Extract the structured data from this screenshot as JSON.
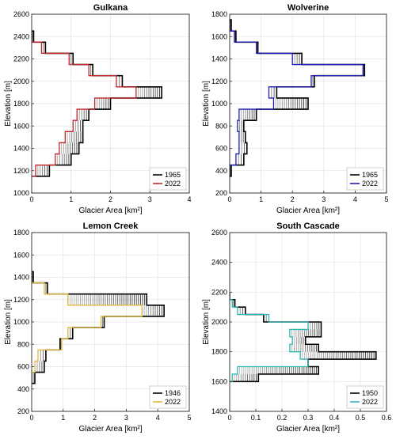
{
  "chart_data": [
    {
      "type": "step",
      "title": "Gulkana",
      "xlabel": "Glacier Area [km²]",
      "ylabel": "Elevation [m]",
      "xlim": [
        0,
        4
      ],
      "ylim": [
        1000,
        2600
      ],
      "xticks": [
        0,
        1,
        2,
        3,
        4
      ],
      "yticks": [
        1000,
        1200,
        1400,
        1600,
        1800,
        2000,
        2200,
        2400,
        2600
      ],
      "grid": true,
      "legend_position": "lower-right",
      "bands": [
        1150,
        1250,
        1350,
        1450,
        1550,
        1650,
        1750,
        1850,
        1950,
        2050,
        2150,
        2250,
        2350,
        2450
      ],
      "series": [
        {
          "name": "1965",
          "color": "#000000",
          "values": [
            0.45,
            1.0,
            1.2,
            1.3,
            1.3,
            1.45,
            2.0,
            3.3,
            2.3,
            1.55,
            1.05,
            0.35,
            0.05
          ]
        },
        {
          "name": "2022",
          "color": "#c0282a",
          "values": [
            0.1,
            0.6,
            0.7,
            0.85,
            1.05,
            1.15,
            1.6,
            2.65,
            2.15,
            1.45,
            0.95,
            0.25,
            0.0
          ]
        }
      ]
    },
    {
      "type": "step",
      "title": "Wolverine",
      "xlabel": "Glacier Area [km²]",
      "ylabel": "Elevation [m]",
      "xlim": [
        0,
        5
      ],
      "ylim": [
        200,
        1800
      ],
      "xticks": [
        0,
        1,
        2,
        3,
        4,
        5
      ],
      "yticks": [
        200,
        400,
        600,
        800,
        1000,
        1200,
        1400,
        1600,
        1800
      ],
      "grid": true,
      "legend_position": "lower-right",
      "bands": [
        350,
        450,
        550,
        650,
        750,
        850,
        950,
        1050,
        1150,
        1250,
        1350,
        1450,
        1550,
        1650,
        1750
      ],
      "series": [
        {
          "name": "1965",
          "color": "#000000",
          "values": [
            0.05,
            0.45,
            0.55,
            0.5,
            0.45,
            0.85,
            2.5,
            1.5,
            2.7,
            4.3,
            2.3,
            0.9,
            0.2,
            0.05
          ]
        },
        {
          "name": "2022",
          "color": "#1f1fb4",
          "values": [
            0.0,
            0.2,
            0.3,
            0.3,
            0.25,
            0.3,
            1.4,
            1.25,
            2.6,
            4.25,
            2.0,
            0.85,
            0.15,
            0.0
          ]
        }
      ]
    },
    {
      "type": "step",
      "title": "Lemon Creek",
      "xlabel": "Glacier Area [km²]",
      "ylabel": "Elevation [m]",
      "xlim": [
        0,
        5
      ],
      "ylim": [
        200,
        1800
      ],
      "xticks": [
        0,
        1,
        2,
        3,
        4,
        5
      ],
      "yticks": [
        200,
        400,
        600,
        800,
        1000,
        1200,
        1400,
        1600,
        1800
      ],
      "grid": true,
      "legend_position": "lower-right",
      "bands": [
        450,
        550,
        650,
        750,
        850,
        950,
        1050,
        1150,
        1250,
        1350,
        1450
      ],
      "series": [
        {
          "name": "1946",
          "color": "#000000",
          "values": [
            0.1,
            0.4,
            0.45,
            0.9,
            1.3,
            2.3,
            4.2,
            3.65,
            0.5,
            0.05
          ]
        },
        {
          "name": "2022",
          "color": "#e1b83a",
          "values": [
            0.0,
            0.1,
            0.2,
            0.95,
            1.15,
            2.2,
            3.5,
            1.15,
            0.4,
            0.0
          ]
        }
      ]
    },
    {
      "type": "step",
      "title": "South Cascade",
      "xlabel": "Glacier Area [km²]",
      "ylabel": "Elevation [m]",
      "xlim": [
        0,
        0.6
      ],
      "ylim": [
        1400,
        2600
      ],
      "xticks": [
        0,
        0.1,
        0.2,
        0.3,
        0.4,
        0.5,
        0.6
      ],
      "yticks": [
        1400,
        1600,
        1800,
        2000,
        2200,
        2400,
        2600
      ],
      "grid": true,
      "legend_position": "lower-right",
      "bands": [
        1600,
        1650,
        1700,
        1750,
        1800,
        1850,
        1900,
        1950,
        2000,
        2050,
        2100,
        2150,
        2200
      ],
      "series": [
        {
          "name": "1950",
          "color": "#000000",
          "values": [
            0.11,
            0.34,
            0.3,
            0.56,
            0.34,
            0.29,
            0.35,
            0.35,
            0.13,
            0.06,
            0.02,
            0.0
          ]
        },
        {
          "name": "2022",
          "color": "#2bb7b2",
          "values": [
            0.01,
            0.03,
            0.3,
            0.27,
            0.23,
            0.24,
            0.23,
            0.3,
            0.15,
            0.03,
            0.01,
            0.0
          ]
        }
      ]
    }
  ]
}
